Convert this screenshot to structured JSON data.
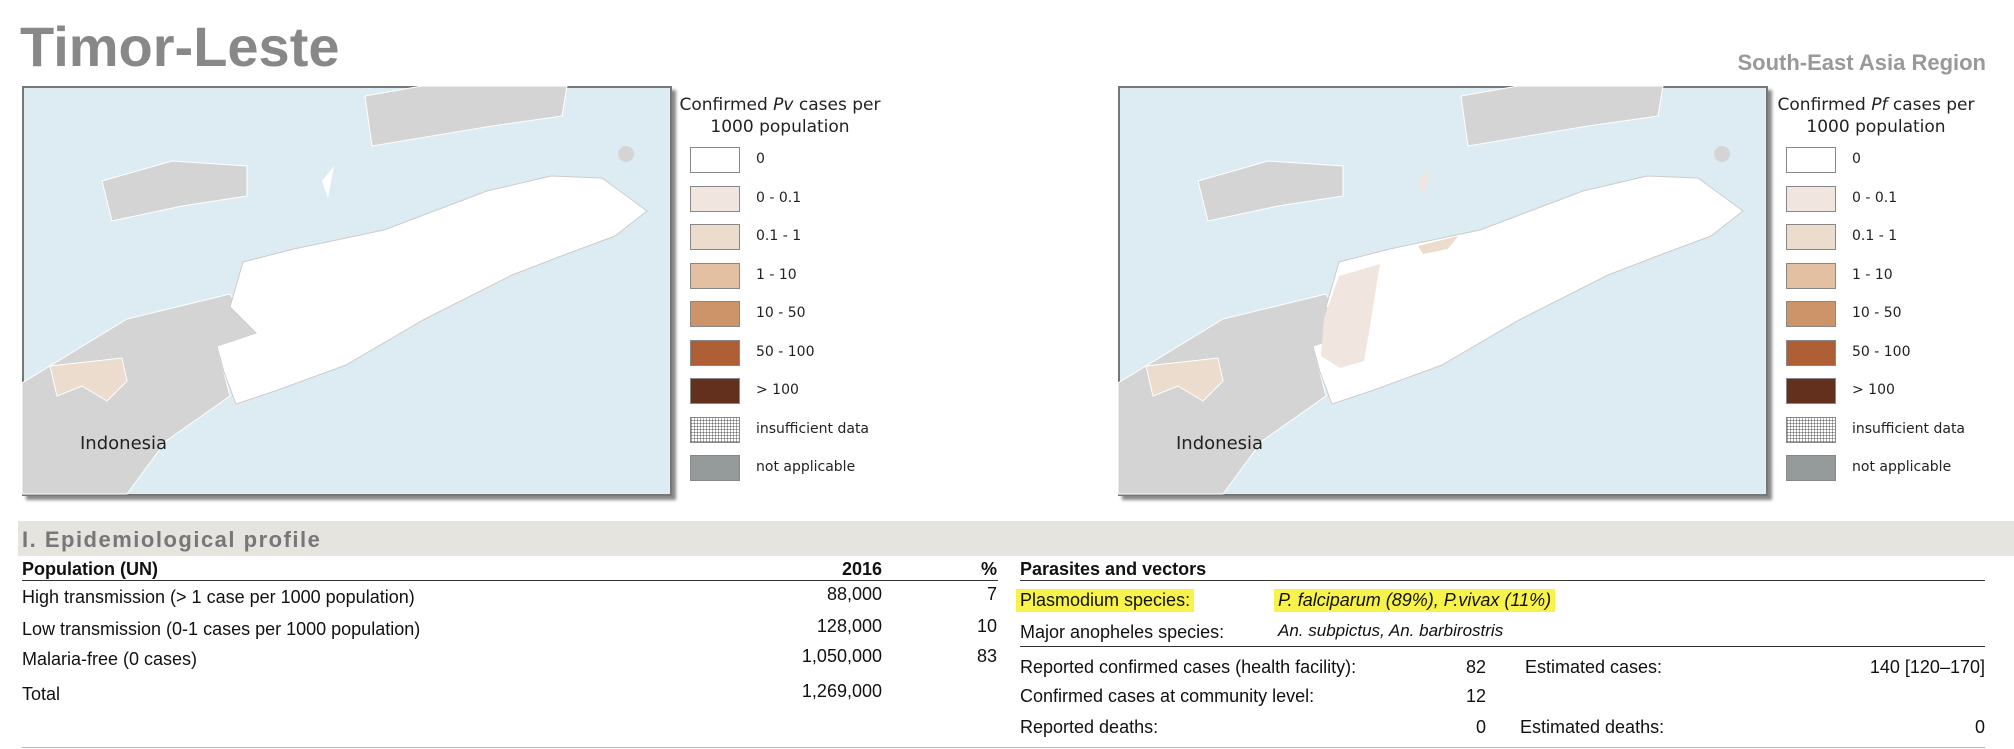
{
  "header": {
    "title": "Timor-Leste",
    "region": "South-East Asia Region"
  },
  "maps": [
    {
      "legend_title": [
        "Confirmed",
        "Pv",
        "cases per",
        "1000 population"
      ],
      "label": "Indonesia"
    },
    {
      "legend_title": [
        "Confirmed",
        "Pf",
        "cases per",
        "1000 population"
      ],
      "label": "Indonesia"
    }
  ],
  "legend": {
    "items": [
      {
        "label": "0",
        "color": "#ffffff"
      },
      {
        "label": "0 - 0.1",
        "color": "#f0e6df"
      },
      {
        "label": "0.1 - 1",
        "color": "#ecdccd"
      },
      {
        "label": "1 - 10",
        "color": "#e3c0a1"
      },
      {
        "label": "10 - 50",
        "color": "#cd9469"
      },
      {
        "label": "50 - 100",
        "color": "#ae5f35"
      },
      {
        "label": "> 100",
        "color": "#62301d"
      },
      {
        "label": "insufficient data",
        "color": "pattern"
      },
      {
        "label": "not applicable",
        "color": "#959a9b"
      }
    ]
  },
  "section": {
    "title": "I. Epidemiological profile"
  },
  "population": {
    "header": [
      "Population (UN)",
      "2016",
      "%"
    ],
    "rows": [
      [
        "High transmission (> 1 case per 1000 population)",
        "88,000",
        "7"
      ],
      [
        "Low transmission (0-1 cases per 1000 population)",
        "128,000",
        "10"
      ],
      [
        "Malaria-free (0 cases)",
        "1,050,000",
        "83"
      ],
      [
        "Total",
        "1,269,000",
        ""
      ]
    ]
  },
  "parasites": {
    "header": "Parasites and vectors",
    "species": {
      "label": "Plasmodium species:",
      "value": "P. falciparum (89%), P.vivax (11%)"
    },
    "anopheles": {
      "label": "Major anopheles species:",
      "value": "An. subpictus, An. barbirostris"
    },
    "cases": [
      {
        "label": "Reported confirmed cases (health facility):",
        "value": "82",
        "est_label": "Estimated cases:",
        "est_value": "140 [120–170]"
      },
      {
        "label": "Confirmed cases at community level:",
        "value": "12"
      },
      {
        "label": "Reported deaths:",
        "value": "0",
        "est_label": "Estimated deaths:",
        "est_value": "0"
      }
    ]
  }
}
